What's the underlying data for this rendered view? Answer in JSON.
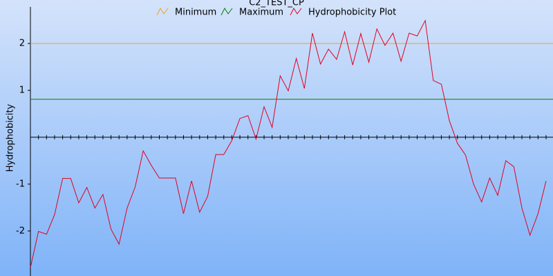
{
  "chart_data": {
    "type": "line",
    "title": "C2_TEST_CP",
    "y_label": "Hydrophobicity",
    "x": [
      1,
      2,
      3,
      4,
      5,
      6,
      7,
      8,
      9,
      10,
      11,
      12,
      13,
      14,
      15,
      16,
      17,
      18,
      19,
      20,
      21,
      22,
      23,
      24,
      25,
      26,
      27,
      28,
      29,
      30,
      31,
      32,
      33,
      34,
      35,
      36,
      37,
      38,
      39,
      40,
      41,
      42,
      43,
      44,
      45,
      46,
      47,
      48,
      49,
      50,
      51,
      52,
      53,
      54,
      55,
      56,
      57,
      58,
      59,
      60,
      61,
      62,
      63,
      64,
      65
    ],
    "xlim": [
      1,
      65
    ],
    "ylim": [
      -2.96,
      2.78
    ],
    "yticks": [
      -2,
      -1,
      1,
      2
    ],
    "series": [
      {
        "name": "Minimum",
        "color": "#f0a020",
        "value": 2
      },
      {
        "name": "Maximum",
        "color": "#008000",
        "value": 0.81
      },
      {
        "name": "Hydrophobicity Plot",
        "color": "#e00020",
        "values": [
          -2.78,
          -2.01,
          -2.07,
          -1.65,
          -0.88,
          -0.88,
          -1.4,
          -1.07,
          -1.51,
          -1.22,
          -1.96,
          -2.28,
          -1.51,
          -1.06,
          -0.29,
          -0.6,
          -0.87,
          -0.87,
          -0.87,
          -1.63,
          -0.93,
          -1.6,
          -1.26,
          -0.37,
          -0.37,
          -0.07,
          0.4,
          0.46,
          -0.04,
          0.65,
          0.21,
          1.31,
          0.99,
          1.68,
          1.04,
          2.22,
          1.56,
          1.88,
          1.66,
          2.25,
          1.54,
          2.21,
          1.6,
          2.31,
          1.96,
          2.22,
          1.62,
          2.22,
          2.16,
          2.49,
          1.21,
          1.13,
          0.35,
          -0.13,
          -0.38,
          -1.0,
          -1.38,
          -0.87,
          -1.24,
          -0.5,
          -0.63,
          -1.51,
          -2.09,
          -1.63,
          -0.93
        ]
      }
    ]
  }
}
